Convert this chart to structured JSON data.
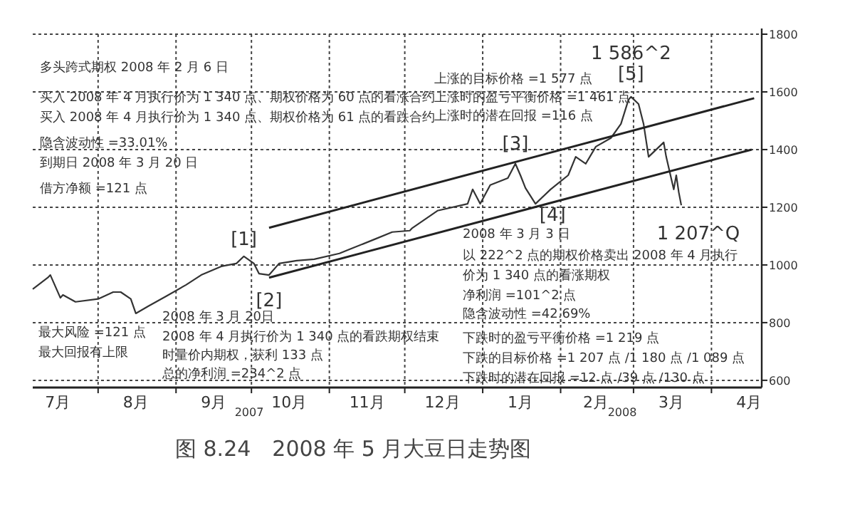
{
  "chart_data": {
    "type": "line",
    "title": "图 8.24　2008 年 5 月大豆日走势图",
    "xlim": [
      "2007-07-06",
      "2008-04-21"
    ],
    "ylim": [
      575,
      1800
    ],
    "xticks": [
      {
        "value": "2007-07-16",
        "label": "7月"
      },
      {
        "value": "2007-08-01",
        "label": null
      },
      {
        "value": "2007-08-16",
        "label": "8月"
      },
      {
        "value": "2007-09-01",
        "label": null
      },
      {
        "value": "2007-09-16",
        "label": "9月"
      },
      {
        "value": "2007-10-01",
        "label": null
      },
      {
        "value": "2007-10-16",
        "label": "10月"
      },
      {
        "value": "2007-11-01",
        "label": null
      },
      {
        "value": "2007-11-16",
        "label": "11月"
      },
      {
        "value": "2007-12-01",
        "label": null
      },
      {
        "value": "2007-12-16",
        "label": "12月"
      },
      {
        "value": "2008-01-01",
        "label": null
      },
      {
        "value": "2008-01-16",
        "label": "1月"
      },
      {
        "value": "2008-02-01",
        "label": null
      },
      {
        "value": "2008-02-15",
        "label": "2月"
      },
      {
        "value": "2008-03-01",
        "label": null
      },
      {
        "value": "2008-03-16",
        "label": "3月"
      },
      {
        "value": "2008-04-01",
        "label": null
      },
      {
        "value": "2008-04-16",
        "label": "4月"
      }
    ],
    "yticks": [
      600,
      800,
      1000,
      1200,
      1400,
      1600,
      1800
    ],
    "grid": true,
    "marker": "none",
    "line_style": "solid",
    "series": [
      {
        "color": "#333333",
        "x": [
          "2007-07-06",
          "2007-07-12",
          "2007-07-13",
          "2007-07-17",
          "2007-07-18",
          "2007-07-23",
          "2007-08-01",
          "2007-08-07",
          "2007-08-10",
          "2007-08-14",
          "2007-08-16",
          "2007-08-21",
          "2007-08-28",
          "2007-09-05",
          "2007-09-11",
          "2007-09-19",
          "2007-09-25",
          "2007-09-28",
          "2007-10-02",
          "2007-10-04",
          "2007-10-08",
          "2007-10-12",
          "2007-10-19",
          "2007-10-26",
          "2007-11-05",
          "2007-11-09",
          "2007-11-19",
          "2007-11-26",
          "2007-12-03",
          "2007-12-04",
          "2007-12-14",
          "2007-12-26",
          "2007-12-28",
          "2007-12-31",
          "2008-01-04",
          "2008-01-11",
          "2008-01-14",
          "2008-01-16",
          "2008-01-18",
          "2008-01-22",
          "2008-01-28",
          "2008-02-04",
          "2008-02-07",
          "2008-02-11",
          "2008-02-15",
          "2008-02-21",
          "2008-02-25",
          "2008-02-28",
          "2008-02-29",
          "2008-03-03",
          "2008-03-05",
          "2008-03-07",
          "2008-03-13",
          "2008-03-14",
          "2008-03-17",
          "2008-03-18",
          "2008-03-19",
          "2008-03-20"
        ],
        "values": [
          916,
          956,
          965,
          886,
          896,
          872,
          882,
          906,
          906,
          882,
          832,
          857,
          891,
          931,
          965,
          995,
          1005,
          1030,
          1005,
          970,
          965,
          1005,
          1015,
          1020,
          1040,
          1054,
          1089,
          1114,
          1119,
          1128,
          1188,
          1212,
          1262,
          1212,
          1277,
          1301,
          1351,
          1311,
          1267,
          1212,
          1262,
          1311,
          1375,
          1351,
          1410,
          1440,
          1489,
          1573,
          1583,
          1558,
          1489,
          1375,
          1425,
          1375,
          1262,
          1311,
          1252,
          1207
        ]
      },
      {
        "type": "line",
        "color": "#222222",
        "x": [
          "2007-10-08",
          "2008-04-18"
        ],
        "values": [
          1129,
          1578
        ]
      },
      {
        "type": "line",
        "color": "#222222",
        "x": [
          "2007-10-08",
          "2008-04-17"
        ],
        "values": [
          956,
          1400
        ]
      }
    ],
    "annotations": [
      "多头跨式期权 2008 年 2 月 6 日",
      "买入 2008 年 4 月执行价为 1 340 点、期权价格为 60 点的看涨合约",
      "买入 2008 年 4 月执行价为 1 340 点、期权价格为 61 点的看跌合约",
      "隐含波动性 =33.01%",
      "到期日 2008 年 3 月 20 日",
      "借方净额 =121 点",
      "最大风险 =121 点",
      "最大回报有上限",
      "2008 年 3 月 20日",
      "2008 年 4 月执行价为 1 340 点的看跌期权结束",
      "时量价内期权，获利 133 点",
      "总的净利润 =234^2 点",
      "上涨的目标价格 =1 577 点",
      "上涨时的盈亏平衡价格 =1 461 点",
      "上涨时的潜在回报 =116 点",
      "2008 年 3 月 3 日",
      "以 222^2 点的期权价格卖出 2008 年 4 月执行",
      "价为 1 340 点的看涨期权",
      "净利润 =101^2 点",
      "隐含波动性 =42.69%",
      "下跌时的盈亏平衡价格 =1 219 点",
      "下跌的目标价格 =1 207 点 /1 180 点 /1 089 点",
      "下跌时的潜在回报 =12 点 /39 点 /130 点",
      "2007",
      "2008",
      {
        "text": "[1]",
        "x": "2007-09-28",
        "y": 1030
      },
      {
        "text": "[2]",
        "x": "2007-10-08",
        "y": 965
      },
      {
        "text": "[3]",
        "x": "2008-01-14",
        "y": 1351
      },
      {
        "text": "[4]",
        "x": "2008-01-22",
        "y": 1212
      },
      {
        "text": "[5]",
        "x": "2008-02-29",
        "y": 1583
      },
      {
        "text": "1 586^2",
        "x": "2008-02-29",
        "y": 1586
      },
      {
        "text": "1 207^Q",
        "x": "2008-03-20",
        "y": 1207
      }
    ]
  }
}
